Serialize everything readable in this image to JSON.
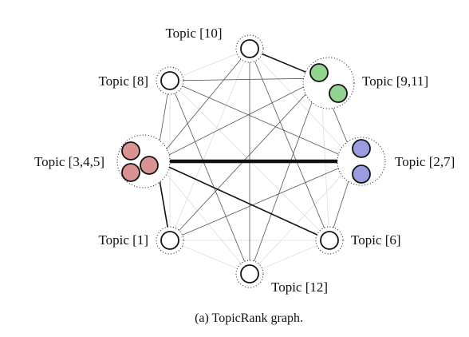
{
  "caption": "(a) TopicRank graph.",
  "colors": {
    "node_default": "#ffffff",
    "node_stroke": "#111111",
    "group_3_4_5": "#d99393",
    "group_9_11": "#93d493",
    "group_2_7": "#9b9be0",
    "edge_dark": "#111111",
    "edge_gray": "#555555",
    "edge_light": "#dddddd"
  },
  "topics": [
    {
      "id": "t10",
      "label": "Topic [10]",
      "members": 1,
      "fill": "node_default"
    },
    {
      "id": "t8",
      "label": "Topic [8]",
      "members": 1,
      "fill": "node_default"
    },
    {
      "id": "t9_11",
      "label": "Topic [9,11]",
      "members": 2,
      "fill": "group_9_11"
    },
    {
      "id": "t3_4_5",
      "label": "Topic [3,4,5]",
      "members": 3,
      "fill": "group_3_4_5"
    },
    {
      "id": "t2_7",
      "label": "Topic [2,7]",
      "members": 2,
      "fill": "group_2_7"
    },
    {
      "id": "t1",
      "label": "Topic [1]",
      "members": 1,
      "fill": "node_default"
    },
    {
      "id": "t6",
      "label": "Topic [6]",
      "members": 1,
      "fill": "node_default"
    },
    {
      "id": "t12",
      "label": "Topic [12]",
      "members": 1,
      "fill": "node_default"
    }
  ],
  "edges": [
    {
      "from": "t3_4_5",
      "to": "t2_7",
      "weight": "heavy"
    },
    {
      "from": "t3_4_5",
      "to": "t1",
      "weight": "medium"
    },
    {
      "from": "t3_4_5",
      "to": "t6",
      "weight": "medium"
    },
    {
      "from": "t10",
      "to": "t9_11",
      "weight": "medium"
    },
    {
      "from": "t9_11",
      "to": "t3_4_5",
      "weight": "thin"
    },
    {
      "from": "t8",
      "to": "t9_11",
      "weight": "thin"
    },
    {
      "from": "t8",
      "to": "t2_7",
      "weight": "thin"
    },
    {
      "from": "t10",
      "to": "t3_4_5",
      "weight": "thin"
    },
    {
      "from": "t10",
      "to": "t6",
      "weight": "thin"
    },
    {
      "from": "t10",
      "to": "t12",
      "weight": "thin"
    },
    {
      "from": "t2_7",
      "to": "t1",
      "weight": "thin"
    },
    {
      "from": "t9_11",
      "to": "t12",
      "weight": "thin"
    },
    {
      "from": "t9_11",
      "to": "t1",
      "weight": "thin"
    },
    {
      "from": "t8",
      "to": "t12",
      "weight": "thin"
    },
    {
      "from": "t2_7",
      "to": "t6",
      "weight": "thin"
    },
    {
      "from": "t9_11",
      "to": "t2_7",
      "weight": "thin"
    },
    {
      "from": "t8",
      "to": "t3_4_5",
      "weight": "thin"
    },
    {
      "from": "t8",
      "to": "t1",
      "weight": "faint"
    },
    {
      "from": "t8",
      "to": "t6",
      "weight": "faint"
    },
    {
      "from": "t10",
      "to": "t8",
      "weight": "faint"
    },
    {
      "from": "t10",
      "to": "t2_7",
      "weight": "faint"
    },
    {
      "from": "t10",
      "to": "t1",
      "weight": "faint"
    },
    {
      "from": "t1",
      "to": "t6",
      "weight": "faint"
    },
    {
      "from": "t1",
      "to": "t12",
      "weight": "faint"
    },
    {
      "from": "t6",
      "to": "t12",
      "weight": "faint"
    },
    {
      "from": "t3_4_5",
      "to": "t12",
      "weight": "faint"
    },
    {
      "from": "t2_7",
      "to": "t12",
      "weight": "faint"
    },
    {
      "from": "t9_11",
      "to": "t6",
      "weight": "faint"
    }
  ]
}
